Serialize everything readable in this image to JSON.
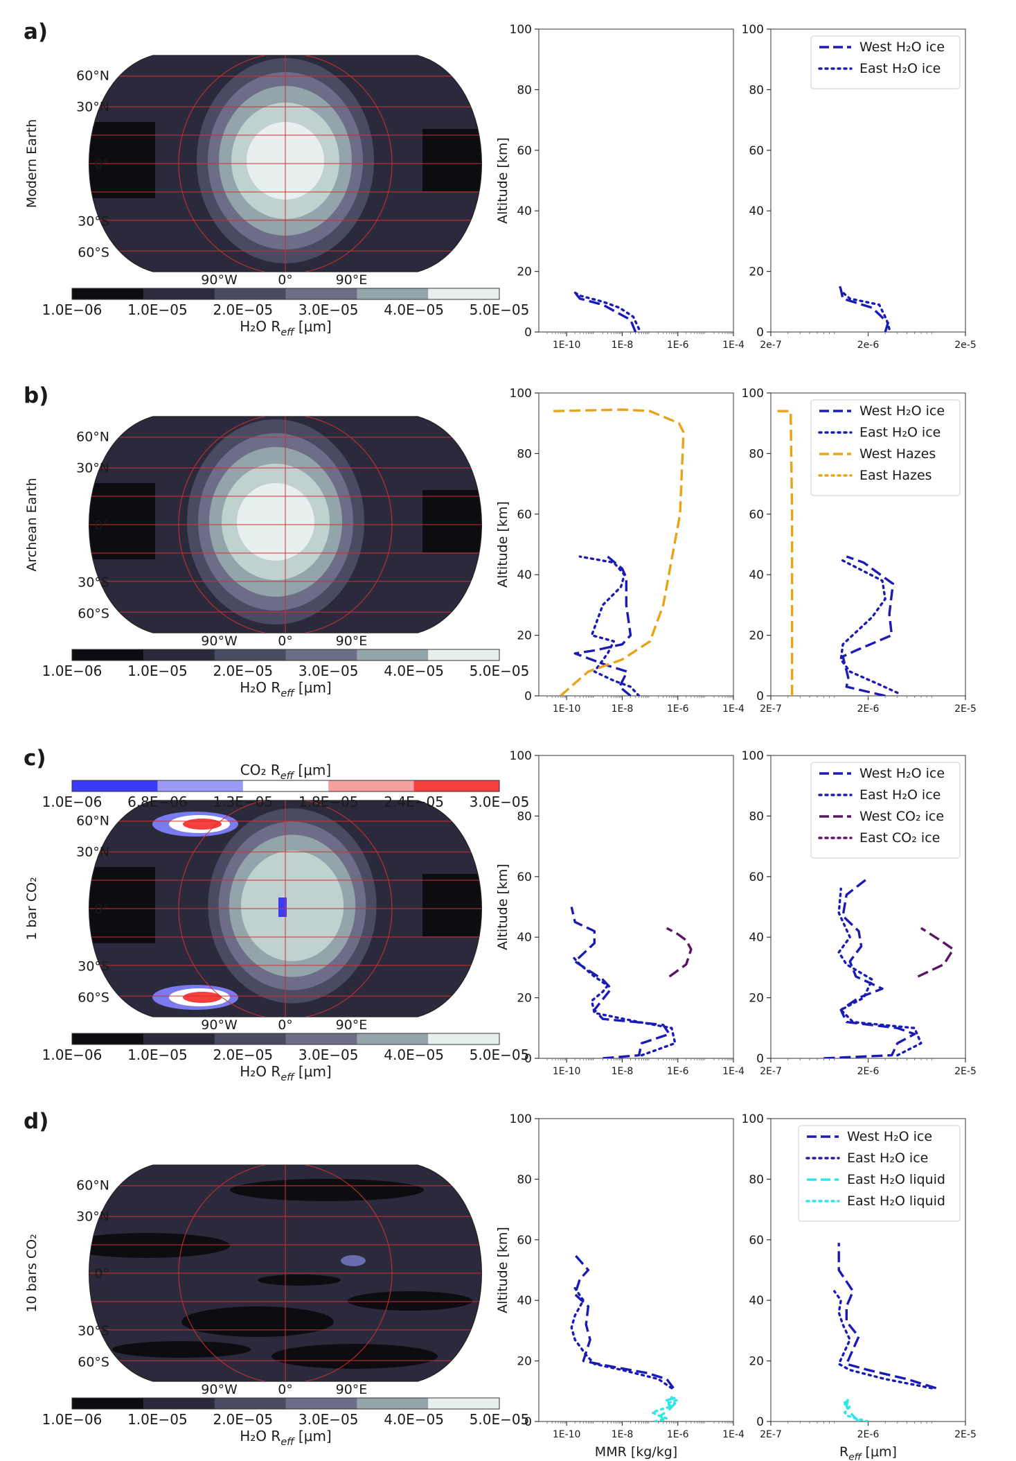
{
  "figure": {
    "tick_labels": {
      "lat": [
        "60°N",
        "30°N",
        "0°",
        "30°S",
        "60°S"
      ],
      "lon": [
        "90°W",
        "0°",
        "90°E"
      ],
      "mmr_x": [
        "1E-10",
        "1E-8",
        "1E-6",
        "1E-4"
      ],
      "reff_x": [
        "2e-7",
        "2e-6",
        "2e-5"
      ],
      "reff_x_upper": [
        "2E-7",
        "2E-6",
        "2E-5"
      ],
      "y": [
        "0",
        "20",
        "40",
        "60",
        "80",
        "100"
      ]
    },
    "colorbars": {
      "h2o": {
        "labels": [
          "1.0E−06",
          "1.0E−05",
          "2.0E−05",
          "3.0E−05",
          "4.0E−05",
          "5.0E−05"
        ],
        "colors": [
          "#0d0c10",
          "#2b2a3c",
          "#4b4a63",
          "#6d6d87",
          "#93a5ab",
          "#c0d1d0",
          "#e8f0ef"
        ]
      },
      "co2": {
        "title": "CO₂ R_eff [μm]",
        "labels": [
          "1.0E−06",
          "6.8E−06",
          "1.3E−05",
          "1.8E−05",
          "2.4E−05",
          "3.0E−05"
        ],
        "colors": [
          "#3b3bf7",
          "#9b9bf7",
          "#ffffff",
          "#f7a0a0",
          "#f53e3e"
        ]
      }
    },
    "colors": {
      "water_ice": "#1a1ab5",
      "hazes": "#e8a317",
      "co2_ice": "#5a1463",
      "liquid": "#2ee6e6",
      "grid": "#d0302f"
    }
  },
  "chart_data": [
    {
      "panel": "a)",
      "map": {
        "type": "heatmap",
        "ylabel": "Modern Earth",
        "colorbar_label": "H₂O R_eff [μm]",
        "glow": "large bright cell centred near 0° longitude",
        "intensity": 1.0
      },
      "mmr": {
        "type": "line",
        "xscale": "log",
        "xlim": [
          1e-11,
          0.0001
        ],
        "ylim": [
          0,
          100
        ],
        "ylabel": "Altitude [km]",
        "series": [
          {
            "name": "West H₂O ice",
            "style": "dashed",
            "color": "#1a1ab5",
            "x": [
              3e-08,
              2e-08,
              5e-09,
              2e-09,
              3e-10,
              2e-10
            ],
            "y": [
              0,
              4,
              7,
              9,
              11,
              13
            ]
          },
          {
            "name": "East H₂O ice",
            "style": "dotted",
            "color": "#1a1ab5",
            "x": [
              4e-08,
              2.5e-08,
              8e-09,
              2e-09,
              3e-10,
              2e-10
            ],
            "y": [
              1,
              5,
              8,
              10,
              12,
              13
            ]
          }
        ]
      },
      "reff": {
        "type": "line",
        "xscale": "log",
        "xlim": [
          2e-07,
          2e-05
        ],
        "ylim": [
          0,
          100
        ],
        "legend": [
          "West H₂O ice",
          "East H₂O ice"
        ],
        "series": [
          {
            "name": "West H₂O ice",
            "style": "dashed",
            "color": "#1a1ab5",
            "x": [
              3e-06,
              3.2e-06,
              2.2e-06,
              1.1e-06,
              1.05e-06,
              1e-06
            ],
            "y": [
              0,
              3,
              8,
              11,
              14,
              16
            ]
          },
          {
            "name": "East H₂O ice",
            "style": "dotted",
            "color": "#1a1ab5",
            "x": [
              3.3e-06,
              3.1e-06,
              2.6e-06,
              1.3e-06,
              1.1e-06
            ],
            "y": [
              1,
              4,
              9,
              11,
              13
            ]
          }
        ]
      }
    },
    {
      "panel": "b)",
      "map": {
        "type": "heatmap",
        "ylabel": "Archean Earth",
        "colorbar_label": "H₂O R_eff [μm]",
        "glow": "large bright cell slightly west of 0°",
        "intensity": 1.0
      },
      "mmr": {
        "type": "line",
        "xscale": "log",
        "xlim": [
          1e-11,
          0.0001
        ],
        "ylim": [
          0,
          100
        ],
        "ylabel": "Altitude [km]",
        "series": [
          {
            "name": "West H₂O ice",
            "style": "dashed",
            "color": "#1a1ab5",
            "x": [
              2e-08,
              8e-09,
              1.5e-08,
              3e-09,
              2e-10,
              1e-09,
              1e-08,
              2e-08,
              1.4e-08,
              1.4e-08,
              1e-08,
              3e-09
            ],
            "y": [
              0,
              3,
              8,
              10,
              14,
              15,
              17,
              20,
              30,
              39,
              42,
              46
            ]
          },
          {
            "name": "East H₂O ice",
            "style": "dotted",
            "color": "#1a1ab5",
            "x": [
              4e-08,
              2e-08,
              5e-09,
              1e-09,
              3e-09,
              5e-09,
              8e-10,
              2e-09,
              9e-09,
              1.2e-08,
              5e-09,
              3e-10
            ],
            "y": [
              0,
              3,
              5,
              8,
              14,
              18,
              20,
              30,
              36,
              40,
              44,
              46
            ]
          },
          {
            "name": "West Hazes",
            "style": "dashed",
            "color": "#e8a317",
            "x": [
              6e-11,
              6e-10,
              1e-08,
              1e-07,
              3e-07,
              1.2e-06,
              1.6e-06,
              1.1e-06,
              1e-07,
              1e-08,
              3e-11
            ],
            "y": [
              0,
              8,
              12,
              18,
              30,
              60,
              87,
              90,
              94,
              94.5,
              94
            ]
          }
        ]
      },
      "reff": {
        "type": "line",
        "xscale": "log",
        "xlim": [
          2e-07,
          2e-05
        ],
        "ylim": [
          0,
          100
        ],
        "legend": [
          "West H₂O ice",
          "East H₂O ice",
          "West Hazes",
          "East Hazes"
        ],
        "series": [
          {
            "name": "West H₂O ice",
            "style": "dashed",
            "color": "#1a1ab5",
            "x": [
              3e-06,
              1.2e-06,
              1.25e-06,
              1.1e-06,
              1.5e-06,
              3.5e-06,
              3.3e-06,
              3.6e-06,
              1.8e-06,
              1.2e-06
            ],
            "y": [
              0,
              3,
              6,
              13,
              15,
              20,
              27,
              37,
              44,
              46
            ]
          },
          {
            "name": "East H₂O ice",
            "style": "dotted",
            "color": "#1a1ab5",
            "x": [
              4e-06,
              2.5e-06,
              1.3e-06,
              1.05e-06,
              1.1e-06,
              2.2e-06,
              3e-06,
              2.8e-06,
              1.6e-06,
              1.05e-06
            ],
            "y": [
              1,
              4,
              8,
              12,
              17,
              26,
              32,
              38,
              42,
              45
            ]
          },
          {
            "name": "West Hazes",
            "style": "dashed",
            "color": "#e8a317",
            "x": [
              3.3e-07,
              3.3e-07,
              3.2e-07,
              2.1e-07
            ],
            "y": [
              0,
              60,
              94,
              94
            ]
          }
        ]
      }
    },
    {
      "panel": "c)",
      "map": {
        "type": "heatmap",
        "ylabel": "1 bar CO₂",
        "colorbar_label": "H₂O R_eff [μm]",
        "glow": "bright cell near 0° with polar CO₂ ice patches",
        "intensity": 0.62
      },
      "mmr": {
        "type": "line",
        "xscale": "log",
        "xlim": [
          1e-11,
          0.0001
        ],
        "ylim": [
          0,
          100
        ],
        "ylabel": "Altitude [km]",
        "series": [
          {
            "name": "West H₂O ice",
            "style": "dashed",
            "color": "#1a1ab5",
            "x": [
              2e-09,
              4e-08,
              5e-08,
              5e-07,
              3e-07,
              3e-08,
              2e-09,
              1e-09,
              4e-09,
              2e-09,
              2e-10,
              1e-09,
              1e-09,
              2e-10,
              1.5e-10
            ],
            "y": [
              0,
              1,
              5,
              8,
              11,
              12,
              13,
              16,
              23,
              26,
              32,
              38,
              42,
              45,
              50
            ]
          },
          {
            "name": "East H₂O ice",
            "style": "dotted",
            "color": "#1a1ab5",
            "x": [
              5e-08,
              8e-07,
              6e-07,
              4e-08,
              1e-09,
              8e-10,
              2e-09,
              3e-09,
              1e-09,
              3e-10,
              1.5e-10
            ],
            "y": [
              1,
              5,
              10,
              12,
              15,
              19,
              22,
              24,
              27,
              31,
              34
            ]
          },
          {
            "name": "West CO₂ ice",
            "style": "dashed",
            "color": "#5a1463",
            "x": [
              5e-07,
              2e-06,
              3e-06,
              2e-06,
              1e-06,
              4e-07
            ],
            "y": [
              27,
              31,
              36,
              39,
              41,
              43
            ]
          }
        ]
      },
      "reff": {
        "type": "line",
        "xscale": "log",
        "xlim": [
          2e-07,
          2e-05
        ],
        "ylim": [
          0,
          100
        ],
        "legend": [
          "West H₂O ice",
          "East H₂O ice",
          "West CO₂ ice",
          "East CO₂ ice"
        ],
        "series": [
          {
            "name": "West H₂O ice",
            "style": "dashed",
            "color": "#1a1ab5",
            "x": [
              7e-07,
              3.5e-06,
              4e-06,
              6e-06,
              4e-06,
              1.2e-06,
              1.05e-06,
              1.6e-06,
              2.8e-06,
              1.5e-06,
              1.3e-06,
              1.7e-06,
              1.6e-06,
              1.1e-06,
              1.2e-06,
              1.9e-06
            ],
            "y": [
              0,
              1,
              5,
              8,
              10,
              12,
              16,
              20,
              23,
              27,
              32,
              37,
              42,
              47,
              54,
              59
            ]
          },
          {
            "name": "East H₂O ice",
            "style": "dotted",
            "color": "#1a1ab5",
            "x": [
              4e-06,
              7e-06,
              6e-06,
              1.4e-06,
              1.05e-06,
              1.8e-06,
              2.2e-06,
              1.2e-06,
              1e-06,
              1.3e-06,
              1e-06,
              1.05e-06
            ],
            "y": [
              1,
              5,
              10,
              12,
              16,
              20,
              26,
              31,
              35,
              40,
              48,
              56
            ]
          },
          {
            "name": "West CO₂ ice",
            "style": "dashed",
            "color": "#5a1463",
            "x": [
              6.5e-06,
              1.2e-05,
              1.5e-05,
              1.1e-05,
              7e-06
            ],
            "y": [
              27,
              31,
              36,
              39,
              43
            ]
          }
        ]
      }
    },
    {
      "panel": "d)",
      "map": {
        "type": "heatmap",
        "ylabel": "10 bars CO₂",
        "colorbar_label": "H₂O R_eff [μm]",
        "glow": "uniformly dark with small R_eff values",
        "intensity": 0.05
      },
      "mmr": {
        "type": "line",
        "xscale": "log",
        "xlim": [
          1e-11,
          0.0001
        ],
        "ylim": [
          0,
          100
        ],
        "ylabel": "Altitude [km]",
        "xlabel": "MMR [kg/kg]",
        "series": [
          {
            "name": "West H₂O ice",
            "style": "dashed",
            "color": "#1a1ab5",
            "x": [
              7e-07,
              4e-07,
              8e-08,
              5e-09,
              4e-10,
              7e-10,
              5e-10,
              6e-10,
              2e-10,
              3e-10,
              6e-10,
              2e-10
            ],
            "y": [
              11,
              14,
              16,
              18,
              20,
              27,
              32,
              38,
              42,
              47,
              50,
              55
            ]
          },
          {
            "name": "East H₂O ice",
            "style": "dotted",
            "color": "#1a1ab5",
            "x": [
              6e-07,
              2e-07,
              1e-08,
              1e-09,
              5e-10,
              2e-10,
              1.5e-10,
              2e-10,
              4e-10,
              2e-10
            ],
            "y": [
              11,
              14,
              17,
              19,
              22,
              27,
              31,
              35,
              40,
              44
            ]
          },
          {
            "name": "East H₂O liquid",
            "style": "dotted",
            "color": "#2ee6e6",
            "x": [
              1.5e-07,
              4e-07,
              2e-07,
              1.2e-07,
              2.5e-07,
              6e-07,
              4e-07,
              9e-07,
              6e-07
            ],
            "y": [
              0,
              1,
              2,
              3,
              4,
              5,
              6,
              7,
              8
            ]
          },
          {
            "name": "East H₂O liquid",
            "style": "dashed",
            "color": "#2ee6e6",
            "x": [
              3e-07,
              2.5e-07,
              5e-07,
              8e-07,
              4e-07,
              1e-06
            ],
            "y": [
              0,
              2,
              4,
              6,
              7,
              8
            ]
          }
        ]
      },
      "reff": {
        "type": "line",
        "xscale": "log",
        "xlim": [
          2e-07,
          2e-05
        ],
        "ylim": [
          0,
          100
        ],
        "xlabel": "R_eff [μm]",
        "legend": [
          "West H₂O ice",
          "East H₂O ice",
          "East H₂O liquid",
          "East H₂O liquid"
        ],
        "series": [
          {
            "name": "West H₂O ice",
            "style": "dashed",
            "color": "#1a1ab5",
            "x": [
              1e-05,
              5e-06,
              2e-06,
              1.2e-06,
              1.6e-06,
              1.2e-06,
              1.2e-06,
              1.4e-06,
              1e-06,
              1e-06
            ],
            "y": [
              11,
              14,
              17,
              19,
              28,
              33,
              38,
              43,
              50,
              59
            ]
          },
          {
            "name": "East H₂O ice",
            "style": "dotted",
            "color": "#1a1ab5",
            "x": [
              9e-06,
              3e-06,
              1.3e-06,
              1e-06,
              1.3e-06,
              1.1e-06,
              1e-06,
              1.05e-06,
              9e-07
            ],
            "y": [
              11,
              14,
              17,
              19,
              27,
              32,
              36,
              40,
              43
            ]
          },
          {
            "name": "East H₂O liquid",
            "style": "dotted",
            "color": "#2ee6e6",
            "x": [
              2e-06,
              1.5e-06,
              1.2e-06,
              1.15e-06,
              1.3e-06,
              1.1e-06,
              1.3e-06
            ],
            "y": [
              0,
              1,
              2,
              3,
              5,
              6,
              7
            ]
          },
          {
            "name": "East H₂O liquid",
            "style": "dashed",
            "color": "#2ee6e6",
            "x": [
              1.6e-06,
              1.3e-06,
              1.2e-06,
              1.25e-06
            ],
            "y": [
              0,
              3,
              5,
              8
            ]
          }
        ]
      }
    }
  ]
}
